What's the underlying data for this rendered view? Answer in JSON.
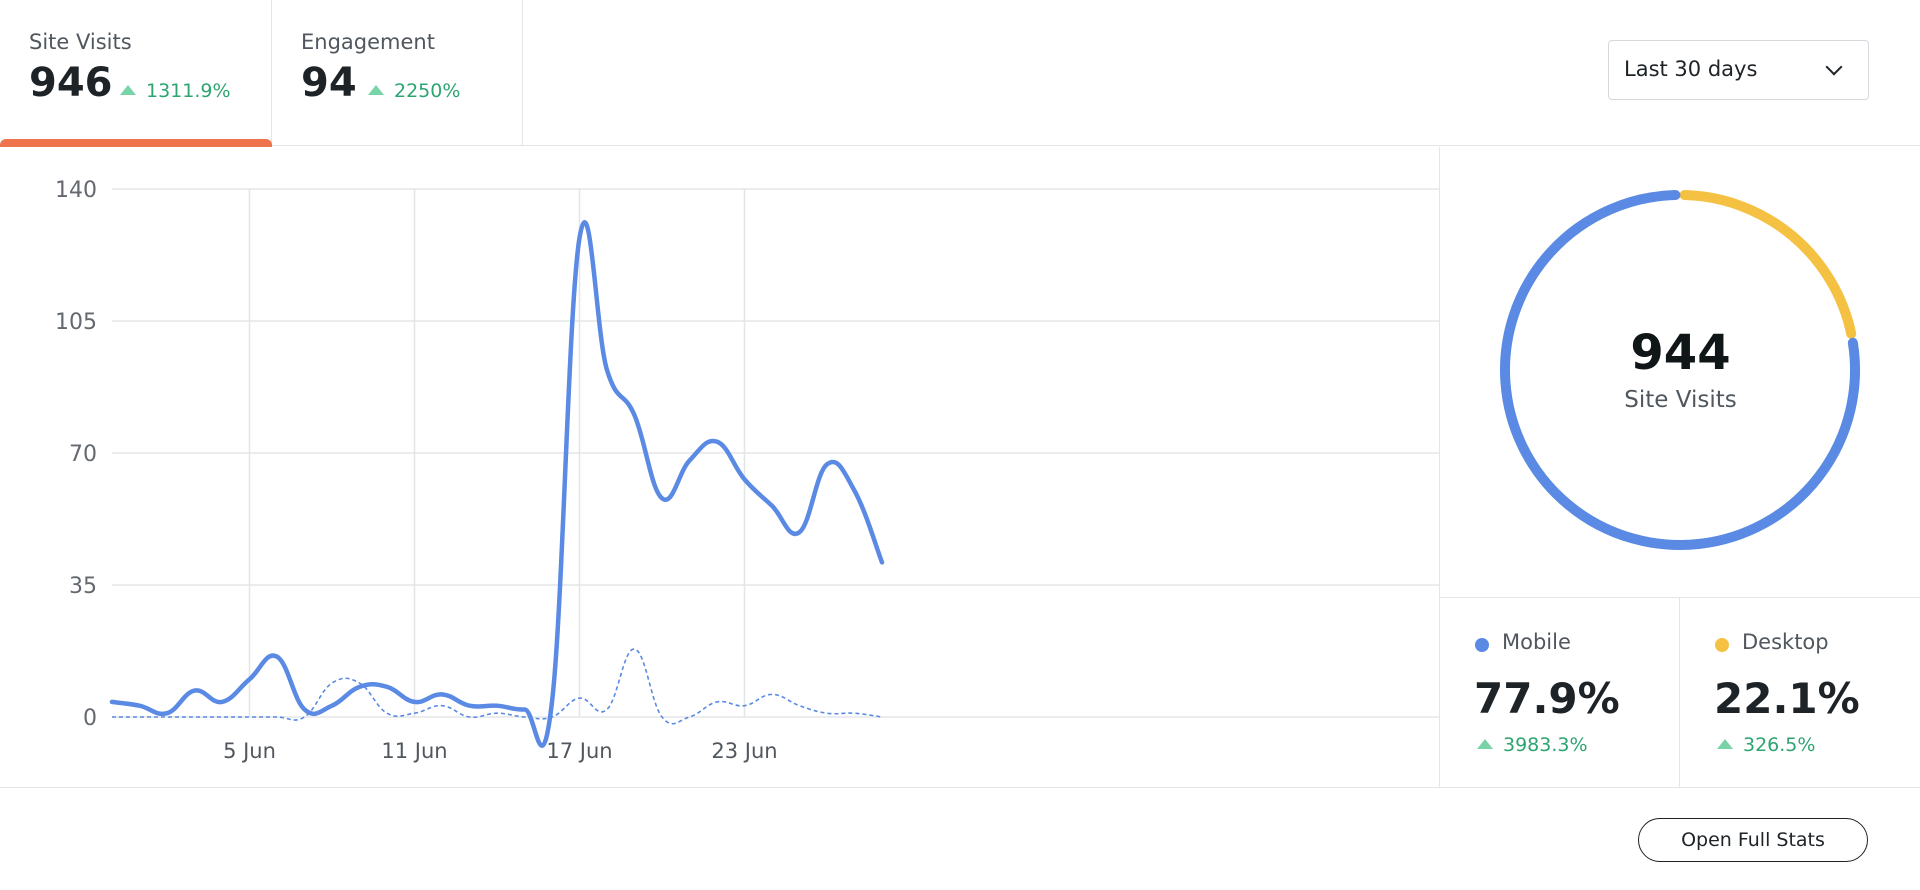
{
  "tabs": [
    {
      "label": "Site Visits",
      "value": "946",
      "delta": "1311.9%"
    },
    {
      "label": "Engagement",
      "value": "94",
      "delta": "2250%"
    }
  ],
  "date_range": {
    "selected": "Last 30 days"
  },
  "colors": {
    "accent": "#f0744b",
    "mobile": "#5a8ae3",
    "desktop": "#f5c142",
    "positive": "#2da570"
  },
  "chart_data": {
    "type": "line",
    "x_start": "31 May",
    "x_end": "29 Jun",
    "x_ticks": [
      "5 Jun",
      "11 Jun",
      "17 Jun",
      "23 Jun"
    ],
    "y_ticks": [
      "140",
      "105",
      "70",
      "35",
      "0"
    ],
    "ylim": [
      0,
      140
    ],
    "grid": true,
    "series": [
      {
        "style": "solid",
        "x": [
          "31 May",
          "1 Jun",
          "2 Jun",
          "3 Jun",
          "4 Jun",
          "5 Jun",
          "6 Jun",
          "7 Jun",
          "8 Jun",
          "9 Jun",
          "10 Jun",
          "11 Jun",
          "12 Jun",
          "13 Jun",
          "14 Jun",
          "15 Jun",
          "16 Jun",
          "17 Jun",
          "18 Jun",
          "19 Jun",
          "20 Jun",
          "21 Jun",
          "22 Jun",
          "23 Jun",
          "24 Jun",
          "25 Jun",
          "26 Jun",
          "27 Jun",
          "28 Jun",
          "29 Jun"
        ],
        "values": [
          4,
          3,
          1,
          7,
          4,
          10,
          16,
          2,
          3,
          8,
          8,
          4,
          6,
          3,
          3,
          2,
          4,
          127,
          92,
          80,
          58,
          68,
          73,
          63,
          56,
          49,
          67,
          60,
          41,
          null
        ]
      },
      {
        "style": "dotted",
        "x": [
          "31 May",
          "1 Jun",
          "2 Jun",
          "3 Jun",
          "4 Jun",
          "5 Jun",
          "6 Jun",
          "7 Jun",
          "8 Jun",
          "9 Jun",
          "10 Jun",
          "11 Jun",
          "12 Jun",
          "13 Jun",
          "14 Jun",
          "15 Jun",
          "16 Jun",
          "17 Jun",
          "18 Jun",
          "19 Jun",
          "20 Jun",
          "21 Jun",
          "22 Jun",
          "23 Jun",
          "24 Jun",
          "25 Jun",
          "26 Jun",
          "27 Jun",
          "28 Jun",
          "29 Jun"
        ],
        "values": [
          0,
          0,
          0,
          0,
          0,
          0,
          0,
          0,
          9,
          9,
          1,
          1,
          3,
          0,
          1,
          0,
          0,
          5,
          2,
          18,
          0,
          0,
          4,
          3,
          6,
          3,
          1,
          1,
          0,
          null
        ]
      }
    ]
  },
  "donut": {
    "total": "944",
    "label": "Site Visits",
    "segments": [
      {
        "name": "Mobile",
        "share": 77.9
      },
      {
        "name": "Desktop",
        "share": 22.1
      }
    ]
  },
  "legend": [
    {
      "name": "Mobile",
      "pct": "77.9%",
      "delta": "3983.3%"
    },
    {
      "name": "Desktop",
      "pct": "22.1%",
      "delta": "326.5%"
    }
  ],
  "footer": {
    "button_label": "Open Full Stats"
  }
}
